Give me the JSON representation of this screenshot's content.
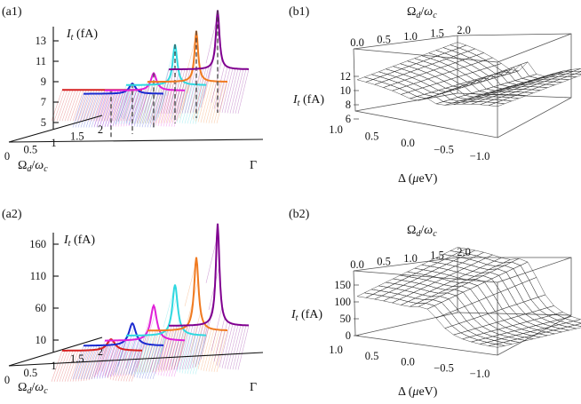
{
  "chart_data": [
    {
      "panel": "(a1)",
      "type": "line",
      "x_label": "Γ",
      "y_label": "I_t (fA)",
      "depth_label": "Ω_d/ω_c",
      "y_ticks": [
        "5",
        "7",
        "9",
        "11",
        "13"
      ],
      "depth_ticks": [
        "0",
        "0.5",
        "1",
        "1.5",
        "2"
      ],
      "series": [
        {
          "depth": 0.0,
          "color": "#d62020",
          "base": 6.8,
          "peak": 0.0,
          "w": 0.7
        },
        {
          "depth": 0.4,
          "color": "#1a2ad0",
          "base": 5.9,
          "peak": 1.0,
          "w": 0.75
        },
        {
          "depth": 0.8,
          "color": "#e020d8",
          "base": 5.7,
          "peak": 1.7,
          "w": 0.65
        },
        {
          "depth": 1.2,
          "color": "#30d8e0",
          "base": 5.7,
          "peak": 4.0,
          "w": 0.5
        },
        {
          "depth": 1.6,
          "color": "#f07a20",
          "base": 5.5,
          "peak": 5.0,
          "w": 0.4
        },
        {
          "depth": 2.0,
          "color": "#800090",
          "base": 6.2,
          "peak": 5.8,
          "w": 0.4
        }
      ]
    },
    {
      "panel": "(a2)",
      "type": "line",
      "x_label": "Γ",
      "y_label": "I_t (fA)",
      "depth_label": "Ω_d/ω_c",
      "y_ticks": [
        "10",
        "60",
        "110",
        "160"
      ],
      "depth_ticks": [
        "0",
        "0.5",
        "1",
        "1.5",
        "2"
      ],
      "series": [
        {
          "depth": 0.0,
          "color": "#d62020",
          "peak": 18,
          "w": 0.9
        },
        {
          "depth": 0.4,
          "color": "#1a2ad0",
          "peak": 35,
          "w": 0.8
        },
        {
          "depth": 0.8,
          "color": "#e020d8",
          "peak": 55,
          "w": 0.7
        },
        {
          "depth": 1.2,
          "color": "#30d8e0",
          "peak": 80,
          "w": 0.6
        },
        {
          "depth": 1.6,
          "color": "#f07a20",
          "peak": 115,
          "w": 0.5
        },
        {
          "depth": 2.0,
          "color": "#800090",
          "peak": 160,
          "w": 0.4
        }
      ]
    },
    {
      "panel": "(b1)",
      "type": "surface",
      "x_label": "Δ (μeV)",
      "y_label": "I_t (fA)",
      "depth_label": "Ω_d/ω_c",
      "z_ticks": [
        "6",
        "8",
        "10",
        "12"
      ],
      "x_ticks": [
        "1.0",
        "0.5",
        "0.0",
        "−0.5",
        "−1.0"
      ],
      "depth_ticks": [
        "0.0",
        "0.5",
        "1.0",
        "1.5",
        "2.0"
      ]
    },
    {
      "panel": "(b2)",
      "type": "surface",
      "x_label": "Δ (μeV)",
      "y_label": "I_t (fA)",
      "depth_label": "Ω_d/ω_c",
      "z_ticks": [
        "0",
        "50",
        "100",
        "150"
      ],
      "x_ticks": [
        "1.0",
        "0.5",
        "0.0",
        "−0.5",
        "−1.0"
      ],
      "depth_ticks": [
        "0.0",
        "0.5",
        "1.0",
        "1.5",
        "2.0"
      ]
    }
  ]
}
